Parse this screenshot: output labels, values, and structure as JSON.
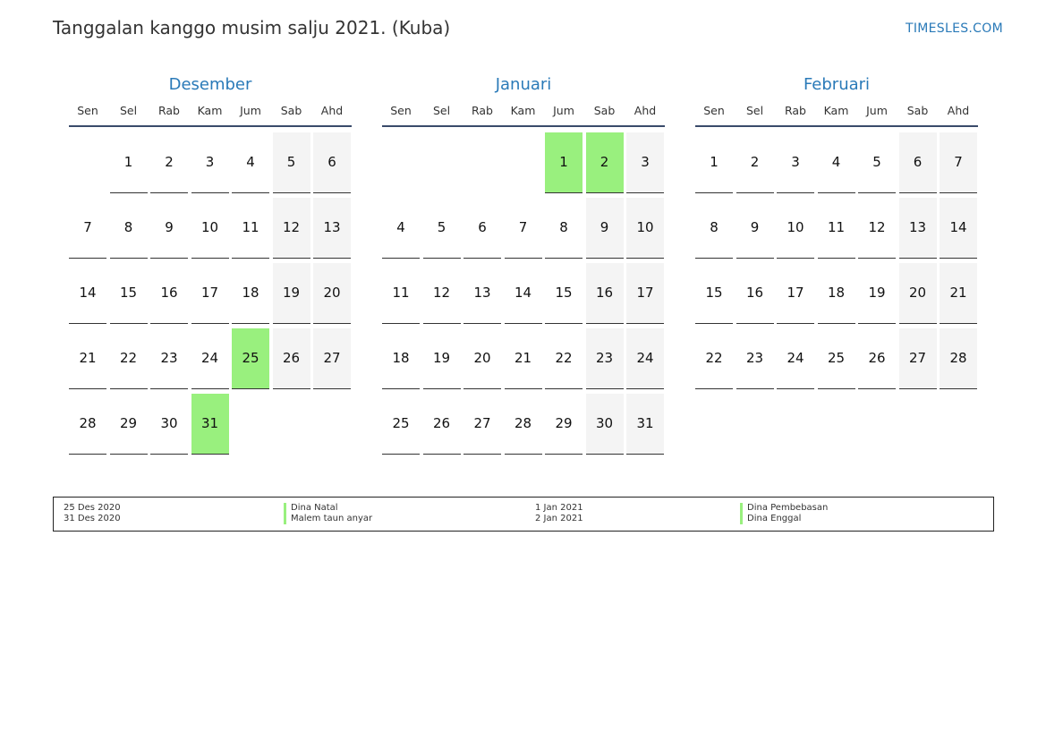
{
  "title": "Tanggalan kanggo musim salju 2021. (Kuba)",
  "brand": "TIMESLES.COM",
  "weekdays": [
    "Sen",
    "Sel",
    "Rab",
    "Kam",
    "Jum",
    "Sab",
    "Ahd"
  ],
  "months": [
    {
      "name": "Desember",
      "first_weekday": 1,
      "days": 31,
      "holidays": [
        25,
        31
      ]
    },
    {
      "name": "Januari",
      "first_weekday": 4,
      "days": 31,
      "holidays": [
        1,
        2
      ]
    },
    {
      "name": "Februari",
      "first_weekday": 0,
      "days": 28,
      "holidays": []
    }
  ],
  "legend": [
    {
      "date": "25 Des 2020",
      "name": "Dina Natal"
    },
    {
      "date": "31 Des 2020",
      "name": "Malem taun anyar"
    },
    {
      "date": "1 Jan 2021",
      "name": "Dina Pembebasan"
    },
    {
      "date": "2 Jan 2021",
      "name": "Dina Enggal"
    }
  ],
  "colors": {
    "holiday": "#99f07e",
    "weekend": "#f4f4f4",
    "accent": "#2a7ab8"
  }
}
